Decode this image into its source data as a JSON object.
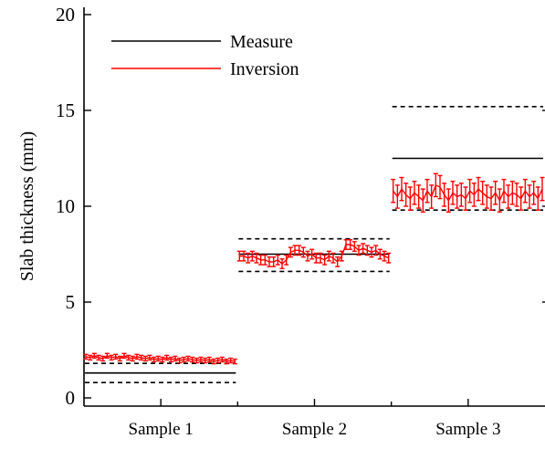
{
  "chart_data": {
    "type": "scatter",
    "ylabel": "Slab thickness (mm)",
    "ylim": [
      0,
      20
    ],
    "yticks": [
      0,
      5,
      10,
      15,
      20
    ],
    "categories": [
      "Sample 1",
      "Sample 2",
      "Sample 3"
    ],
    "legend": {
      "position": "top-left",
      "entries": [
        {
          "label": "Measure",
          "color": "#000000"
        },
        {
          "label": "Inversion",
          "color": "#ff0000"
        }
      ]
    },
    "measure": [
      {
        "category": "Sample 1",
        "value": 1.3,
        "lower": 0.8,
        "upper": 1.8
      },
      {
        "category": "Sample 2",
        "value": 7.5,
        "lower": 6.6,
        "upper": 8.3
      },
      {
        "category": "Sample 3",
        "value": 12.5,
        "lower": 9.8,
        "upper": 15.2
      }
    ],
    "inversion": [
      {
        "category": "Sample 1",
        "values": [
          2.15,
          2.1,
          2.2,
          2.1,
          2.05,
          2.2,
          2.1,
          2.15,
          2.05,
          2.2,
          2.1,
          2.05,
          2.15,
          2.1,
          2.05,
          2.1,
          2.0,
          2.05,
          2.0,
          2.1,
          2.0,
          2.05,
          1.95,
          2.0,
          2.05,
          2.0,
          1.95,
          2.0,
          1.95,
          2.0,
          1.9,
          1.95,
          2.0,
          1.9,
          1.95,
          1.9
        ],
        "error": 0.12
      },
      {
        "category": "Sample 2",
        "values": [
          7.4,
          7.4,
          7.3,
          7.4,
          7.3,
          7.2,
          7.2,
          7.1,
          7.1,
          7.2,
          7.0,
          7.2,
          7.6,
          7.7,
          7.7,
          7.6,
          7.4,
          7.5,
          7.3,
          7.3,
          7.2,
          7.4,
          7.3,
          7.1,
          7.4,
          8.0,
          8.0,
          7.9,
          7.7,
          7.8,
          7.7,
          7.6,
          7.7,
          7.5,
          7.4,
          7.3
        ],
        "error": 0.25
      },
      {
        "category": "Sample 3",
        "values": [
          10.8,
          10.5,
          10.9,
          10.6,
          10.4,
          10.7,
          10.5,
          10.3,
          10.8,
          10.5,
          11.1,
          11.0,
          10.6,
          10.3,
          10.7,
          10.5,
          10.6,
          10.4,
          10.8,
          10.6,
          10.9,
          10.7,
          10.5,
          10.4,
          10.7,
          10.3,
          10.8,
          10.5,
          10.7,
          10.6,
          10.4,
          10.8,
          10.5,
          10.7,
          10.4,
          10.9
        ],
        "error": 0.6
      }
    ]
  }
}
